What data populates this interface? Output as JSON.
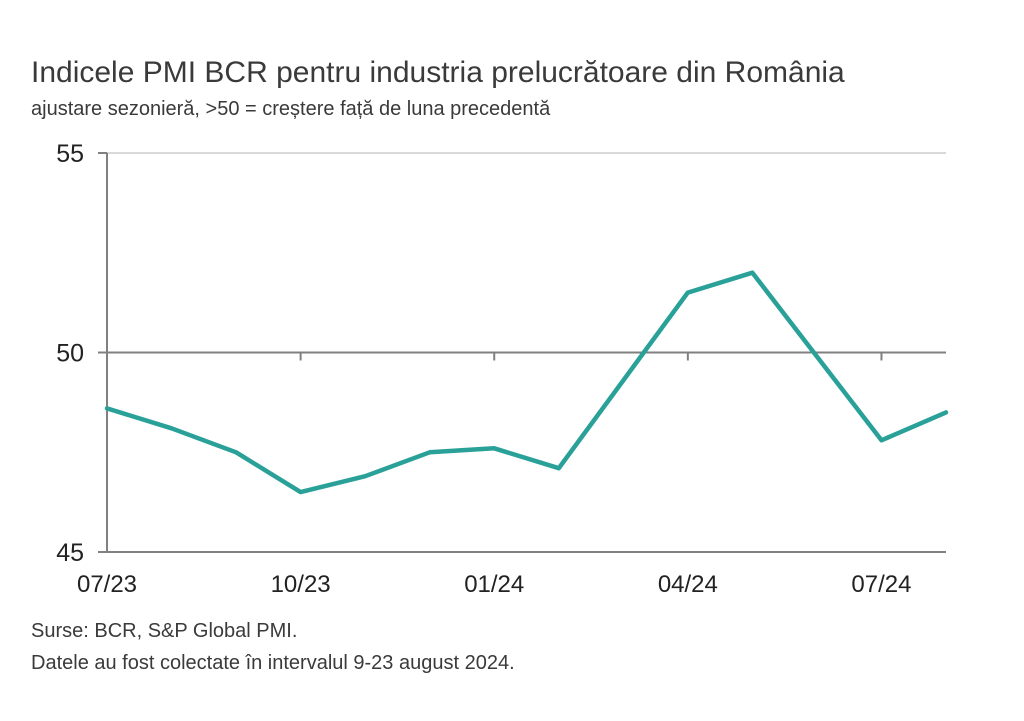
{
  "chart_data": {
    "type": "line",
    "title": "Indicele PMI BCR pentru industria prelucrătoare din România",
    "subtitle": "ajustare sezonieră, >50 = creștere față de luna precedentă",
    "x": [
      "07/23",
      "08/23",
      "09/23",
      "10/23",
      "11/23",
      "12/23",
      "01/24",
      "02/24",
      "03/24",
      "04/24",
      "05/24",
      "06/24",
      "07/24",
      "08/24"
    ],
    "x_tick_labels": [
      "07/23",
      "10/23",
      "01/24",
      "04/24",
      "07/24"
    ],
    "series": [
      {
        "values": [
          48.6,
          48.1,
          47.5,
          46.5,
          46.9,
          47.5,
          47.6,
          47.1,
          49.3,
          51.5,
          52.0,
          49.9,
          47.8,
          48.5
        ]
      }
    ],
    "ylim": [
      45,
      55
    ],
    "y_ticks": [
      45,
      50,
      55
    ],
    "reference_line": 50,
    "grid": true,
    "legend": "none",
    "colors": {
      "line": "#2aa198",
      "grid": "#d9d9d9",
      "axis": "#808080",
      "ref": "#808080"
    }
  },
  "footer": {
    "source": "Surse: BCR, S&P Global PMI.",
    "note": "Datele au fost colectate în intervalul 9-23 august 2024."
  }
}
